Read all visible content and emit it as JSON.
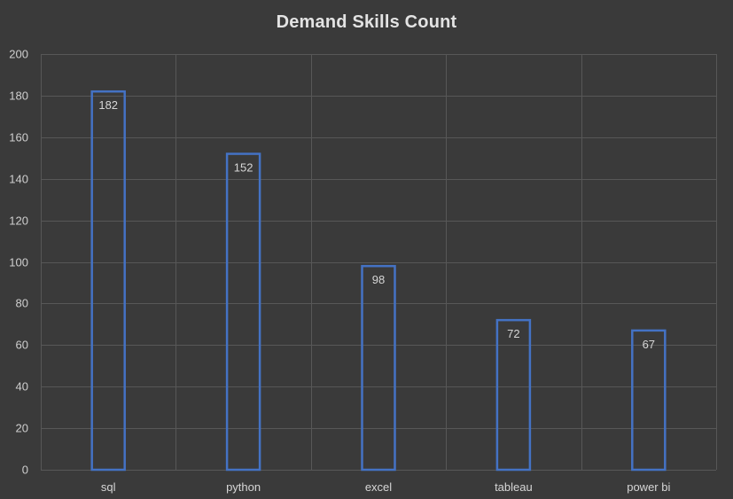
{
  "chart_data": {
    "type": "bar",
    "title": "Demand Skills Count",
    "categories": [
      "sql",
      "python",
      "excel",
      "tableau",
      "power bi"
    ],
    "values": [
      182,
      152,
      98,
      72,
      67
    ],
    "ylim": [
      0,
      200
    ],
    "yticks": [
      0,
      20,
      40,
      60,
      80,
      100,
      120,
      140,
      160,
      180,
      200
    ],
    "grid": true,
    "legend": "none",
    "bar_style": "outline",
    "colors": {
      "background": "#3a3a3a",
      "bar_outline": "#4472c4",
      "gridline": "#575757",
      "text": "#d9d9d9"
    }
  }
}
